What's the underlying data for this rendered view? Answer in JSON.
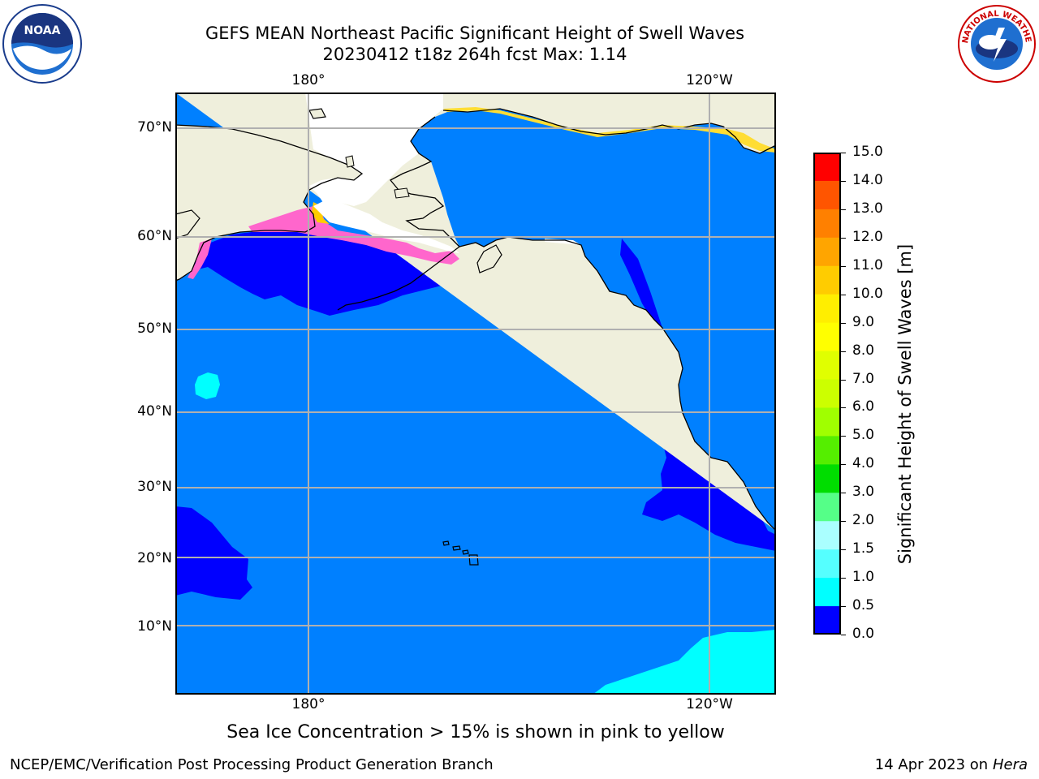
{
  "header": {
    "title_line1": "GEFS MEAN Northeast Pacific Significant Height of Swell Waves",
    "title_line2": "20230412 t18z 264h fcst   Max: 1.14"
  },
  "logos": {
    "left": "noaa-logo",
    "right": "national-weather-service-logo",
    "nws_text": "NATIONAL WEATHER SERVICE"
  },
  "map": {
    "top_lon_labels": [
      "180°",
      "120°W"
    ],
    "bottom_lon_labels": [
      "180°",
      "120°W"
    ],
    "lat_labels": [
      "70°N",
      "60°N",
      "50°N",
      "40°N",
      "30°N",
      "20°N",
      "10°N"
    ],
    "colors": {
      "ocean_low": "#0080ff",
      "ocean_very_low": "#0000ff",
      "ocean_mid": "#00ffff",
      "land": "#efefdc",
      "ice": "#ff66cc",
      "grid": "#b0b0b0"
    }
  },
  "colorbar": {
    "title": "Significant Height of Swell Waves [m]",
    "ticks": [
      "15.0",
      "14.0",
      "13.0",
      "12.0",
      "11.0",
      "10.0",
      "9.0",
      "8.0",
      "7.0",
      "6.0",
      "5.0",
      "4.0",
      "3.0",
      "2.0",
      "1.5",
      "1.0",
      "0.5",
      "0.0"
    ],
    "colors_top_to_bottom": [
      "#ff0000",
      "#ff3300",
      "#ff5500",
      "#ff8000",
      "#ffa500",
      "#ffcc00",
      "#ffee00",
      "#ffff00",
      "#e0ff00",
      "#ccff00",
      "#a0ff00",
      "#55ee00",
      "#00dd00",
      "#55ff88",
      "#aaffff",
      "#55ffff",
      "#00ffff",
      "#0080ff",
      "#0000ff"
    ]
  },
  "footer": {
    "note": "Sea Ice Concentration > 15% is shown in pink to yellow",
    "left": "NCEP/EMC/Verification Post Processing Product Generation Branch",
    "right_prefix": "14 Apr 2023 on ",
    "right_host": "Hera"
  }
}
